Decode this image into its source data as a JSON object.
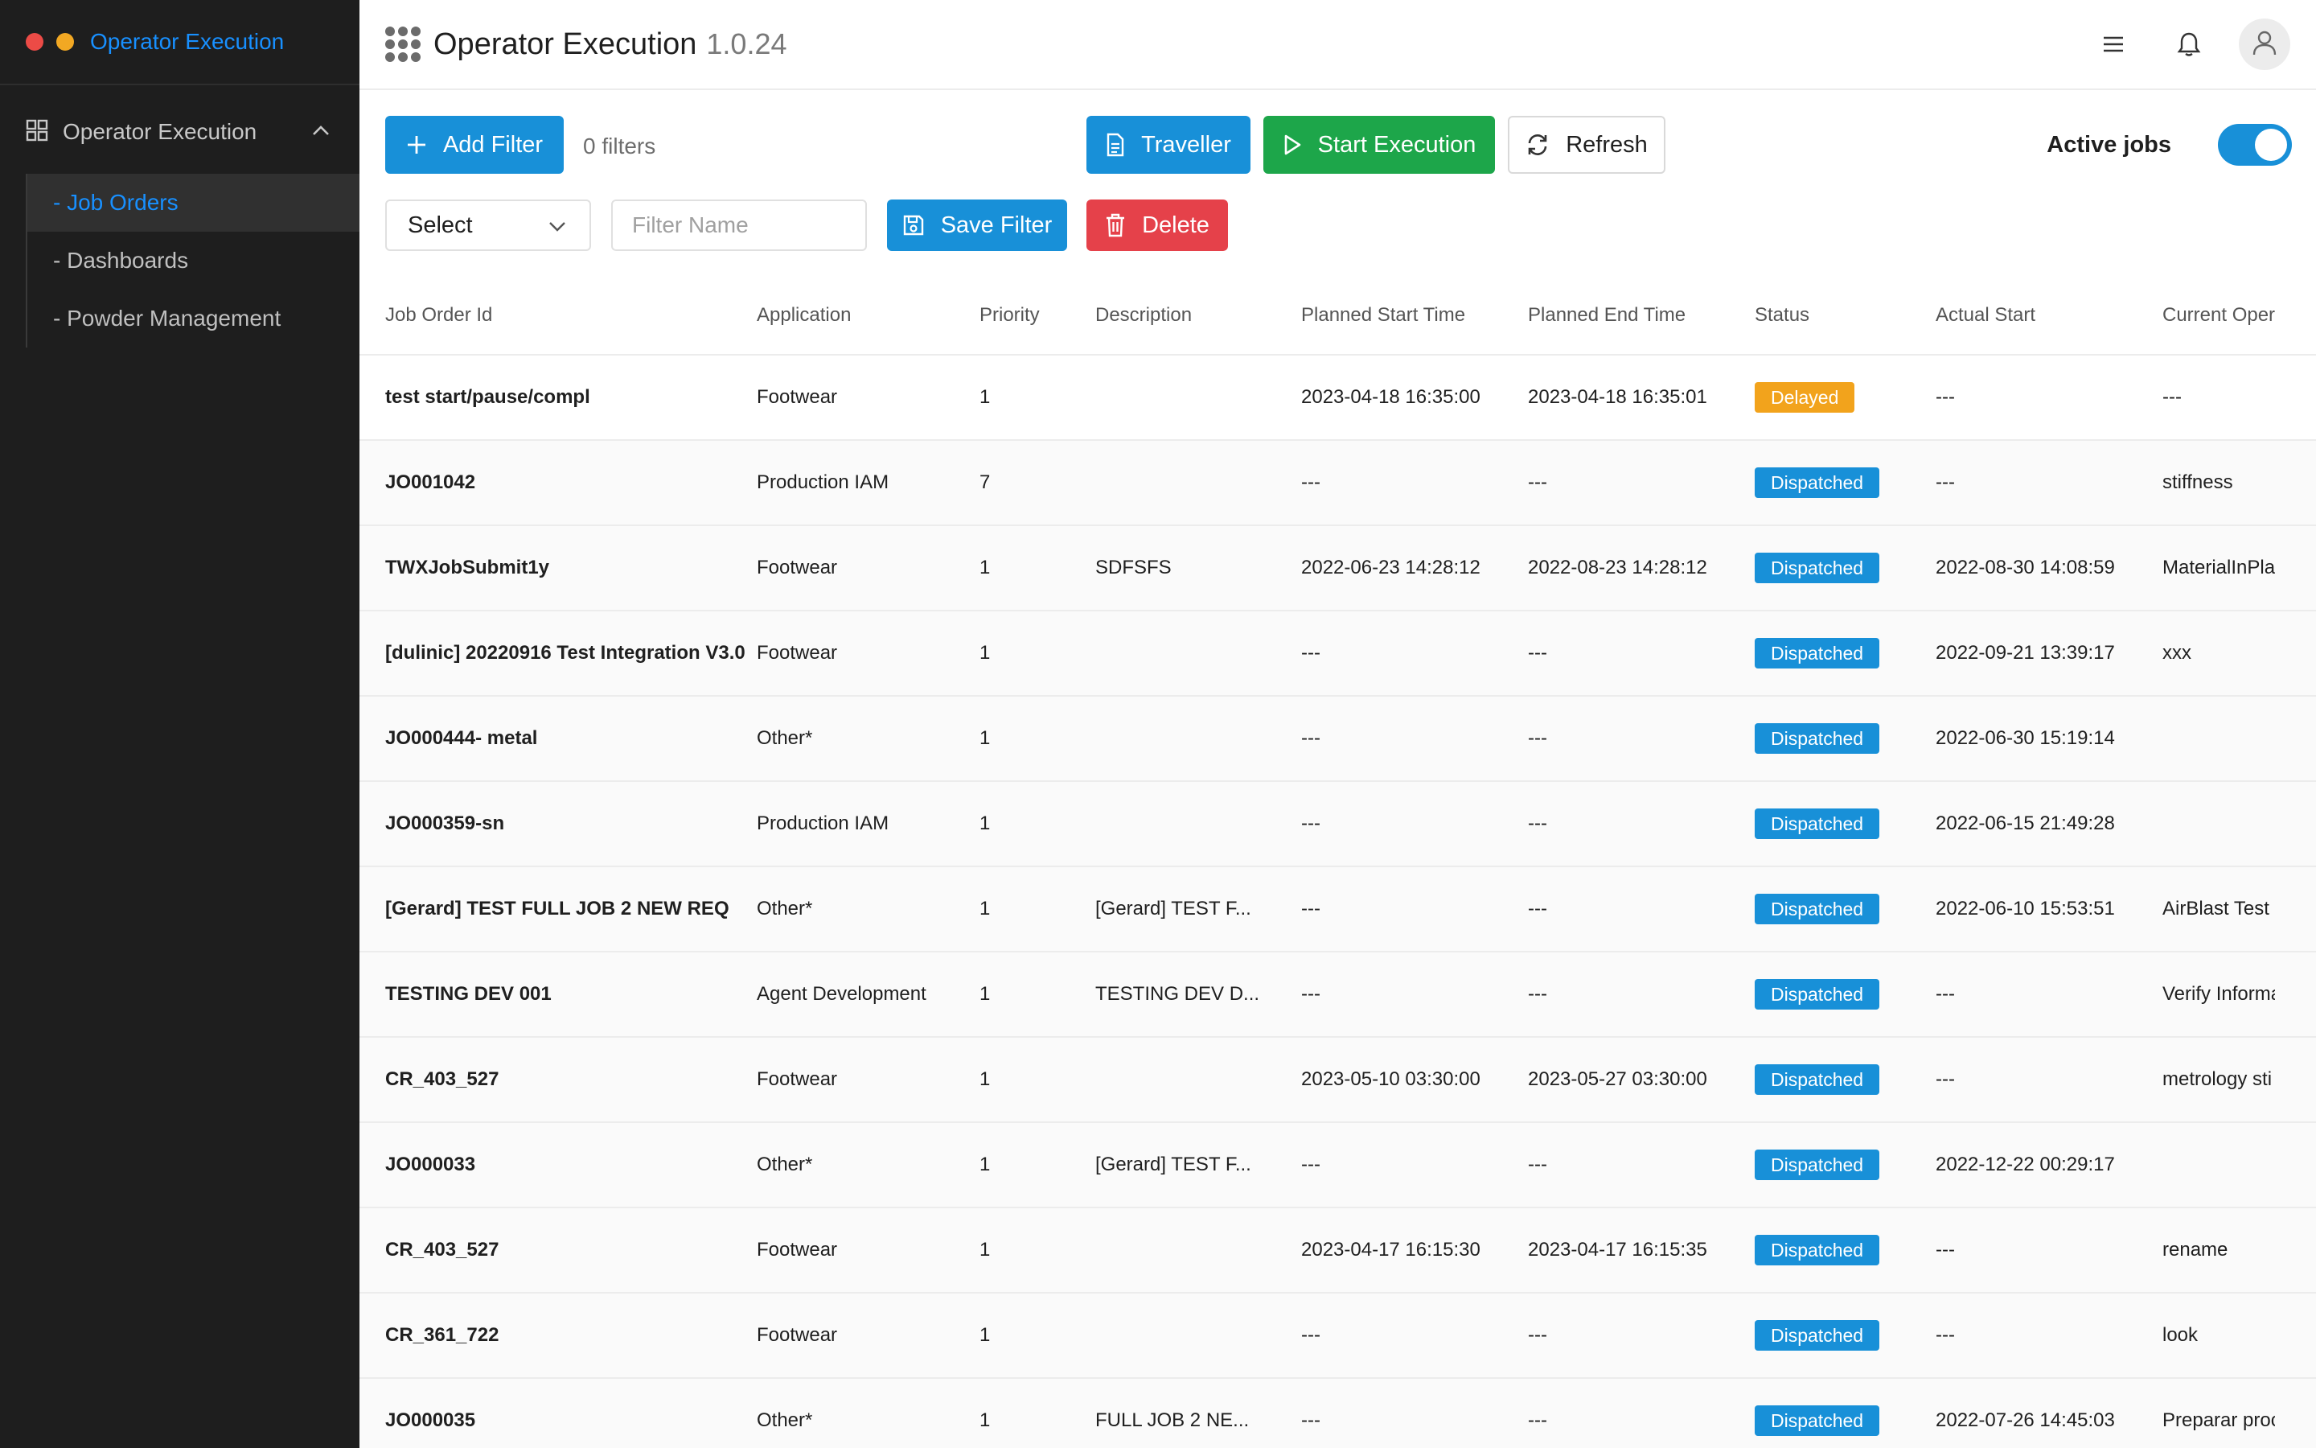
{
  "sidebar": {
    "app_title": "Operator Execution",
    "section_label": "Operator Execution",
    "items": [
      {
        "label": "- Job Orders"
      },
      {
        "label": "- Dashboards"
      },
      {
        "label": "- Powder Management"
      }
    ]
  },
  "header": {
    "title": "Operator Execution",
    "version": "1.0.24"
  },
  "toolbar": {
    "add_filter_label": "Add Filter",
    "filters_count": "0 filters",
    "traveller_label": "Traveller",
    "start_execution_label": "Start Execution",
    "refresh_label": "Refresh",
    "active_jobs_label": "Active jobs",
    "active_jobs_on": true,
    "select_value": "Select",
    "filter_name_placeholder": "Filter Name",
    "save_filter_label": "Save Filter",
    "delete_label": "Delete"
  },
  "table": {
    "columns": [
      "Job Order Id",
      "Application",
      "Priority",
      "Description",
      "Planned Start Time",
      "Planned End Time",
      "Status",
      "Actual Start",
      "Current Oper"
    ],
    "rows": [
      {
        "id": "test start/pause/compl",
        "app": "Footwear",
        "priority": "1",
        "desc": "",
        "pstart": "2023-04-18 16:35:00",
        "pend": "2023-04-18 16:35:01",
        "status": "Delayed",
        "astart": "---",
        "op": "---"
      },
      {
        "id": "JO001042",
        "app": "Production IAM",
        "priority": "7",
        "desc": "",
        "pstart": "---",
        "pend": "---",
        "status": "Dispatched",
        "astart": "---",
        "op": "stiffness"
      },
      {
        "id": "TWXJobSubmit1y",
        "app": "Footwear",
        "priority": "1",
        "desc": "SDFSFS",
        "pstart": "2022-06-23 14:28:12",
        "pend": "2022-08-23 14:28:12",
        "status": "Dispatched",
        "astart": "2022-08-30 14:08:59",
        "op": "MaterialInPla"
      },
      {
        "id": "[dulinic] 20220916 Test Integration V3.0",
        "app": "Footwear",
        "priority": "1",
        "desc": "",
        "pstart": "---",
        "pend": "---",
        "status": "Dispatched",
        "astart": "2022-09-21 13:39:17",
        "op": "xxx"
      },
      {
        "id": "JO000444- metal",
        "app": "Other*",
        "priority": "1",
        "desc": "",
        "pstart": "---",
        "pend": "---",
        "status": "Dispatched",
        "astart": "2022-06-30 15:19:14",
        "op": ""
      },
      {
        "id": "JO000359-sn",
        "app": "Production IAM",
        "priority": "1",
        "desc": "",
        "pstart": "---",
        "pend": "---",
        "status": "Dispatched",
        "astart": "2022-06-15 21:49:28",
        "op": ""
      },
      {
        "id": "[Gerard] TEST FULL JOB 2 NEW REQ",
        "app": "Other*",
        "priority": "1",
        "desc": "[Gerard] TEST F...",
        "pstart": "---",
        "pend": "---",
        "status": "Dispatched",
        "astart": "2022-06-10 15:53:51",
        "op": "AirBlast Test"
      },
      {
        "id": "TESTING DEV 001",
        "app": "Agent Development",
        "priority": "1",
        "desc": "TESTING DEV D...",
        "pstart": "---",
        "pend": "---",
        "status": "Dispatched",
        "astart": "---",
        "op": "Verify Informa"
      },
      {
        "id": "CR_403_527",
        "app": "Footwear",
        "priority": "1",
        "desc": "",
        "pstart": "2023-05-10 03:30:00",
        "pend": "2023-05-27 03:30:00",
        "status": "Dispatched",
        "astart": "---",
        "op": "metrology sti"
      },
      {
        "id": "JO000033",
        "app": "Other*",
        "priority": "1",
        "desc": "[Gerard] TEST F...",
        "pstart": "---",
        "pend": "---",
        "status": "Dispatched",
        "astart": "2022-12-22 00:29:17",
        "op": ""
      },
      {
        "id": "CR_403_527",
        "app": "Footwear",
        "priority": "1",
        "desc": "",
        "pstart": "2023-04-17 16:15:30",
        "pend": "2023-04-17 16:15:35",
        "status": "Dispatched",
        "astart": "---",
        "op": "rename"
      },
      {
        "id": "CR_361_722",
        "app": "Footwear",
        "priority": "1",
        "desc": "",
        "pstart": "---",
        "pend": "---",
        "status": "Dispatched",
        "astart": "---",
        "op": "look"
      },
      {
        "id": "JO000035",
        "app": "Other*",
        "priority": "1",
        "desc": "FULL JOB 2 NE...",
        "pstart": "---",
        "pend": "---",
        "status": "Dispatched",
        "astart": "2022-07-26 14:45:03",
        "op": "Preparar proc"
      }
    ]
  },
  "colors": {
    "accent": "#1890d8",
    "success": "#1da64a",
    "danger": "#e5414a",
    "warning": "#f2a31c",
    "sidebar_bg": "#1e1e1e"
  },
  "icons": {
    "apps": "apps-grid-icon",
    "menu": "hamburger-menu-icon",
    "bell": "bell-icon",
    "user": "user-icon",
    "plus": "plus-icon",
    "doc": "document-icon",
    "play": "play-icon",
    "refresh": "refresh-icon",
    "save": "save-icon",
    "trash": "trash-icon",
    "dashboard": "dashboard-grid-icon",
    "chevron": "chevron-up-icon"
  }
}
